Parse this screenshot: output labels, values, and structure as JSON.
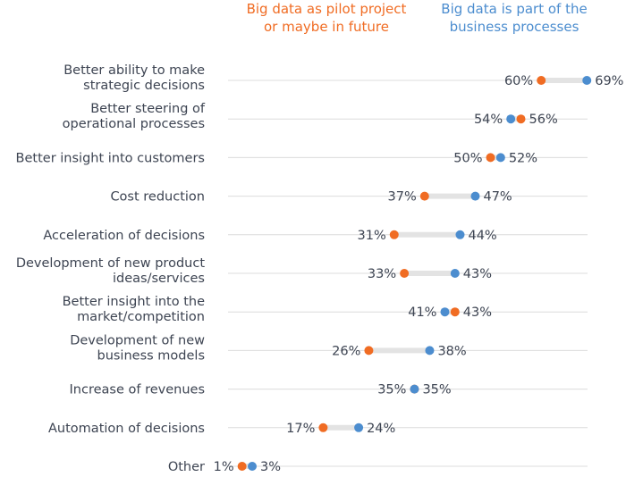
{
  "chart_data": {
    "type": "dot-range",
    "series": [
      {
        "name": "Big data as pilot project or maybe in future",
        "color": "#f06c23",
        "values": [
          60,
          56,
          50,
          37,
          31,
          33,
          43,
          26,
          35,
          17,
          1
        ]
      },
      {
        "name": "Big data is part of the business processes",
        "color": "#4c8dcf",
        "values": [
          69,
          54,
          52,
          47,
          44,
          43,
          41,
          38,
          35,
          24,
          3
        ]
      }
    ],
    "categories": [
      [
        "Better ability to make",
        "strategic decisions"
      ],
      [
        "Better steering of",
        "operational processes"
      ],
      [
        "Better insight into customers"
      ],
      [
        "Cost reduction"
      ],
      [
        "Acceleration of decisions"
      ],
      [
        "Development of new product",
        "ideas/services"
      ],
      [
        "Better insight into the",
        "market/competition"
      ],
      [
        "Development of new",
        "business models"
      ],
      [
        "Increase of revenues"
      ],
      [
        "Automation of decisions"
      ],
      [
        "Other"
      ]
    ],
    "value_suffix": "%",
    "legend_placement": "top",
    "grid": true
  },
  "legend": {
    "orange_lines": [
      "Big data as pilot project",
      "or maybe in future"
    ],
    "blue_lines": [
      "Big data is part of the",
      "business processes"
    ]
  }
}
